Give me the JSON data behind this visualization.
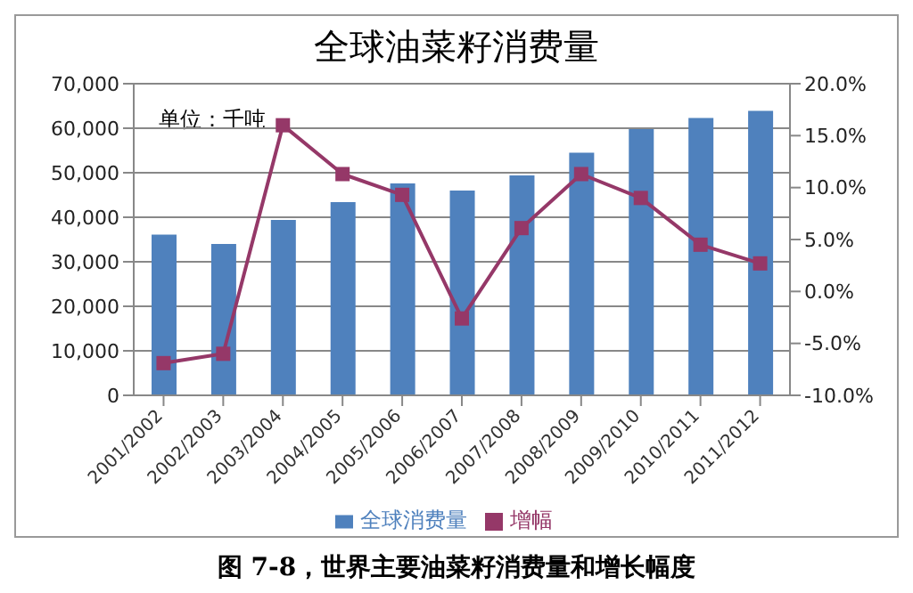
{
  "chart_data": {
    "type": "bar",
    "title": "全球油菜籽消费量",
    "annotations": [
      "单位：千吨",
      "图 7-8，世界主要油菜籽消费量和增长幅度"
    ],
    "categories": [
      "2001/2002",
      "2002/2003",
      "2003/2004",
      "2004/2005",
      "2005/2006",
      "2006/2007",
      "2007/2008",
      "2008/2009",
      "2009/2010",
      "2010/2011",
      "2011/2012"
    ],
    "series": [
      {
        "name": "全球消费量",
        "color": "#4f81bd",
        "values": [
          36100,
          34000,
          39400,
          43400,
          47600,
          46000,
          49400,
          54500,
          59800,
          62300,
          63900
        ]
      },
      {
        "name": "增幅",
        "type": "line",
        "axis": "y2",
        "color": "#953868",
        "marker": "square",
        "values": [
          -6.9,
          -6.0,
          16.0,
          11.3,
          9.3,
          -2.6,
          6.1,
          11.3,
          9.0,
          4.5,
          2.7
        ]
      }
    ],
    "ylim": [
      0,
      70000
    ],
    "yticks": [
      {
        "value": 0,
        "label": "0"
      },
      {
        "value": 10000,
        "label": "10,000"
      },
      {
        "value": 20000,
        "label": "20,000"
      },
      {
        "value": 30000,
        "label": "30,000"
      },
      {
        "value": 40000,
        "label": "40,000"
      },
      {
        "value": 50000,
        "label": "50,000"
      },
      {
        "value": 60000,
        "label": "60,000"
      },
      {
        "value": 70000,
        "label": "70,000"
      }
    ],
    "y2lim": [
      -10,
      20
    ],
    "y2ticks": [
      {
        "value": -10,
        "label": "-10.0%"
      },
      {
        "value": -5,
        "label": "-5.0%"
      },
      {
        "value": 0,
        "label": "0.0%"
      },
      {
        "value": 5,
        "label": "5.0%"
      },
      {
        "value": 10,
        "label": "10.0%"
      },
      {
        "value": 15,
        "label": "15.0%"
      },
      {
        "value": 20,
        "label": "20.0%"
      }
    ],
    "grid": "y",
    "legend": "bottom"
  }
}
